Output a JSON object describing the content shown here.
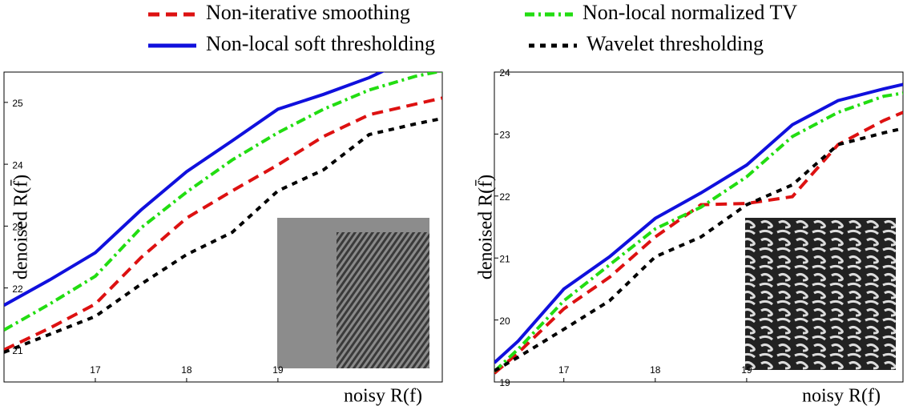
{
  "chart_data": [
    {
      "type": "line",
      "xlabel": "noisy R(f)",
      "ylabel": "denoised R(f̄)",
      "x": [
        16,
        16.5,
        17,
        17.5,
        18,
        18.5,
        19,
        19.5,
        20,
        20.5,
        20.8
      ],
      "xlim": [
        16.0,
        20.8
      ],
      "ylim": [
        20.48,
        25.49
      ],
      "xticks": [
        17,
        18,
        19
      ],
      "yticks": [
        21,
        22,
        23,
        24,
        25
      ],
      "series": [
        {
          "name": "Non-iterative smoothing",
          "color": "#dd1111",
          "linestyle": "dashed",
          "values": [
            21.0,
            21.35,
            21.74,
            22.49,
            23.13,
            23.57,
            23.99,
            24.45,
            24.8,
            24.97,
            25.07
          ]
        },
        {
          "name": "Non-local soft thresholding",
          "color": "#1010dd",
          "linestyle": "solid",
          "values": [
            21.72,
            22.13,
            22.57,
            23.26,
            23.88,
            24.38,
            24.89,
            25.13,
            25.4,
            25.75,
            25.9
          ]
        },
        {
          "name": "Non-local normalized TV",
          "color": "#22dd11",
          "linestyle": "dashdot",
          "values": [
            21.32,
            21.74,
            22.19,
            22.97,
            23.55,
            24.07,
            24.51,
            24.89,
            25.2,
            25.42,
            25.51
          ]
        },
        {
          "name": "Wavelet thresholding",
          "color": "#000000",
          "linestyle": "dotted",
          "values": [
            20.96,
            21.25,
            21.54,
            22.06,
            22.54,
            22.9,
            23.57,
            23.91,
            24.48,
            24.65,
            24.74
          ]
        }
      ]
    },
    {
      "type": "line",
      "xlabel": "noisy R(f)",
      "ylabel": "denoised R(f̄)",
      "x": [
        16.24,
        16.5,
        17,
        17.5,
        18,
        18.5,
        19,
        19.5,
        20,
        20.5,
        20.71
      ],
      "xlim": [
        16.24,
        20.71
      ],
      "ylim": [
        19,
        24
      ],
      "xticks": [
        17,
        18,
        19
      ],
      "yticks": [
        19,
        20,
        21,
        22,
        23,
        24
      ],
      "series": [
        {
          "color": "#dd1111",
          "linestyle": "dashed",
          "values": [
            19.14,
            19.47,
            20.18,
            20.69,
            21.34,
            21.86,
            21.88,
            21.99,
            22.83,
            23.22,
            23.35
          ]
        },
        {
          "color": "#1010dd",
          "linestyle": "solid",
          "values": [
            19.31,
            19.66,
            20.5,
            21.02,
            21.64,
            22.05,
            22.5,
            23.15,
            23.54,
            23.73,
            23.8
          ]
        },
        {
          "color": "#22dd11",
          "linestyle": "dashdot",
          "values": [
            19.17,
            19.53,
            20.31,
            20.89,
            21.47,
            21.82,
            22.31,
            22.96,
            23.35,
            23.61,
            23.66
          ]
        },
        {
          "color": "#000000",
          "linestyle": "dotted",
          "values": [
            19.18,
            19.4,
            19.85,
            20.31,
            21.02,
            21.34,
            21.86,
            22.18,
            22.83,
            23.02,
            23.09
          ]
        }
      ]
    }
  ]
}
